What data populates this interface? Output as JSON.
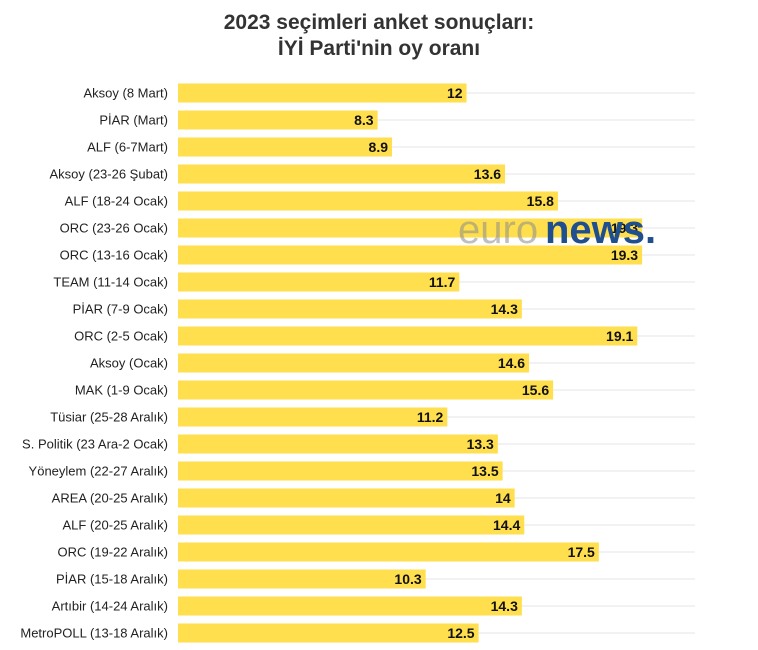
{
  "chart_data": {
    "type": "bar",
    "orientation": "horizontal",
    "title_lines": [
      "2023 seçimleri anket sonuçları:",
      "İYİ Parti'nin oy oranı"
    ],
    "categories": [
      "Aksoy (8 Mart)",
      "PİAR (Mart)",
      "ALF (6-7Mart)",
      "Aksoy (23-26 Şubat)",
      "ALF (18-24 Ocak)",
      "ORC (23-26 Ocak)",
      "ORC (13-16 Ocak)",
      "TEAM (11-14 Ocak)",
      "PİAR (7-9 Ocak)",
      "ORC (2-5 Ocak)",
      "Aksoy (Ocak)",
      "MAK (1-9 Ocak)",
      "Tüsiar (25-28 Aralık)",
      "S. Politik (23 Ara-2 Ocak)",
      "Yöneylem (22-27 Aralık)",
      "AREA (20-25 Aralık)",
      "ALF (20-25 Aralık)",
      "ORC (19-22 Aralık)",
      "PİAR (15-18 Aralık)",
      "Artıbir (14-24 Aralık)",
      "MetroPOLL (13-18 Aralık)"
    ],
    "values": [
      12,
      8.3,
      8.9,
      13.6,
      15.8,
      19.3,
      19.3,
      11.7,
      14.3,
      19.1,
      14.6,
      15.6,
      11.2,
      13.3,
      13.5,
      14,
      14.4,
      17.5,
      10.3,
      14.3,
      12.5
    ],
    "value_labels": [
      "12",
      "8.3",
      "8.9",
      "13.6",
      "15.8",
      "19.3",
      "19.3",
      "11.7",
      "14.3",
      "19.1",
      "14.6",
      "15.6",
      "11.2",
      "13.3",
      "13.5",
      "14",
      "14.4",
      "17.5",
      "10.3",
      "14.3",
      "12.5"
    ],
    "xlim": [
      0,
      21.5
    ],
    "xlabel": "",
    "ylabel": "",
    "grid": true,
    "legend": "none",
    "bar_color": "#ffdf4d"
  },
  "watermark": {
    "part1": "euro",
    "part2": "news."
  },
  "colors": {
    "bar": "#ffdf4d",
    "grid": "#e6e6e6",
    "logo_blue": "#1f4f8f"
  }
}
